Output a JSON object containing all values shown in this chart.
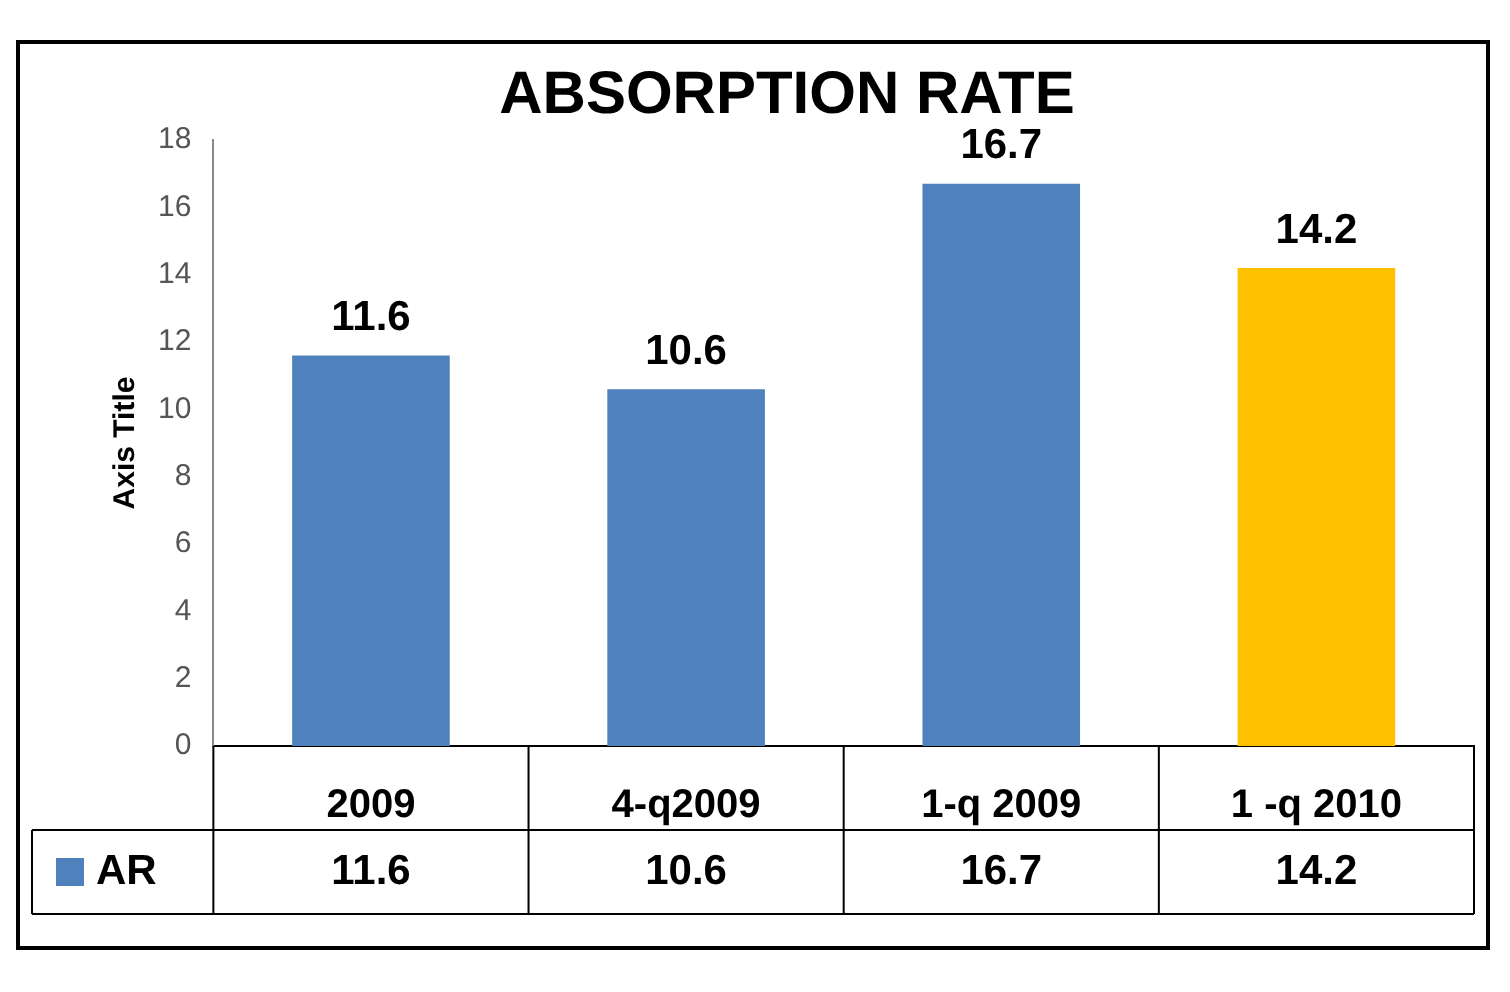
{
  "chart_data": {
    "type": "bar",
    "title": "ABSORPTION RATE",
    "ylabel": "Axis Title",
    "categories": [
      "2009",
      "4-q2009",
      "1-q 2009",
      "1 -q 2010"
    ],
    "series": [
      {
        "name": "AR",
        "values": [
          11.6,
          10.6,
          16.7,
          14.2
        ],
        "colors": [
          "#4f81bd",
          "#4f81bd",
          "#4f81bd",
          "#ffc000"
        ]
      }
    ],
    "annotations": [
      "11.6",
      "10.6",
      "16.7",
      "14.2"
    ],
    "ylim": [
      0,
      18
    ],
    "yticks": [
      0,
      2,
      4,
      6,
      8,
      10,
      12,
      14,
      16,
      18
    ],
    "data_labels": true,
    "legend": "bottom"
  }
}
